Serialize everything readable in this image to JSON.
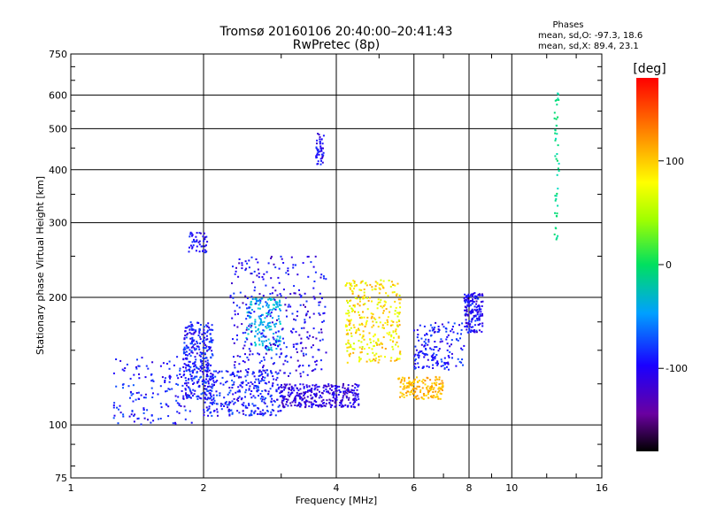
{
  "chart_data": {
    "type": "scatter",
    "title": "Tromsø 20160106 20:40:00–20:41:43",
    "subtitle": "RwPretec (8p)",
    "xlabel": "Frequency [MHz]",
    "ylabel": "Stationary phase Virtual Height [km]",
    "x_scale": "log",
    "y_scale": "log",
    "xlim": [
      1,
      16
    ],
    "ylim": [
      75,
      750
    ],
    "x_ticks": [
      1,
      2,
      4,
      6,
      8,
      10,
      16
    ],
    "y_ticks": [
      75,
      100,
      200,
      300,
      400,
      500,
      600,
      750
    ],
    "grid": true,
    "phases": {
      "header": "Phases",
      "line_o": "mean, sd,O: -97.3, 18.6",
      "line_x": "mean, sd,X:  89.4, 23.1"
    },
    "colorbar": {
      "label": "[deg]",
      "ticks": [
        100,
        0,
        -100
      ],
      "range": [
        -180,
        180
      ],
      "colormap": "rainbow: black-purple-blue-cyan-green-yellow-orange-red"
    },
    "clusters": [
      {
        "f_range": [
          1.25,
          1.9
        ],
        "h_range": [
          100,
          145
        ],
        "phase": -100,
        "spread": 25,
        "density": "medium"
      },
      {
        "f_range": [
          1.8,
          2.1
        ],
        "h_range": [
          115,
          175
        ],
        "phase": -100,
        "spread": 25,
        "density": "high"
      },
      {
        "f_range": [
          2.0,
          3.0
        ],
        "h_range": [
          105,
          135
        ],
        "phase": -100,
        "spread": 25,
        "density": "high"
      },
      {
        "f_range": [
          2.5,
          3.0
        ],
        "h_range": [
          150,
          200
        ],
        "phase": -40,
        "spread": 20,
        "density": "medium"
      },
      {
        "f_range": [
          2.3,
          3.8
        ],
        "h_range": [
          130,
          250
        ],
        "phase": -110,
        "spread": 25,
        "density": "high"
      },
      {
        "f_range": [
          3.0,
          4.5
        ],
        "h_range": [
          110,
          125
        ],
        "phase": -120,
        "spread": 20,
        "density": "high"
      },
      {
        "f_range": [
          1.85,
          2.05
        ],
        "h_range": [
          255,
          285
        ],
        "phase": -110,
        "spread": 20,
        "density": "low"
      },
      {
        "f_range": [
          3.6,
          3.75
        ],
        "h_range": [
          410,
          490
        ],
        "phase": -110,
        "spread": 20,
        "density": "low"
      },
      {
        "f_range": [
          4.2,
          5.6
        ],
        "h_range": [
          140,
          220
        ],
        "phase": 105,
        "spread": 30,
        "density": "high"
      },
      {
        "f_range": [
          5.5,
          7.0
        ],
        "h_range": [
          115,
          130
        ],
        "phase": 125,
        "spread": 15,
        "density": "medium"
      },
      {
        "f_range": [
          6.0,
          7.8
        ],
        "h_range": [
          135,
          175
        ],
        "phase": -100,
        "spread": 25,
        "density": "medium"
      },
      {
        "f_range": [
          7.8,
          8.6
        ],
        "h_range": [
          165,
          205
        ],
        "phase": -110,
        "spread": 25,
        "density": "medium"
      },
      {
        "f_range": [
          12.5,
          12.8
        ],
        "h_range": [
          270,
          610
        ],
        "phase": -10,
        "spread": 10,
        "density": "low"
      }
    ]
  }
}
